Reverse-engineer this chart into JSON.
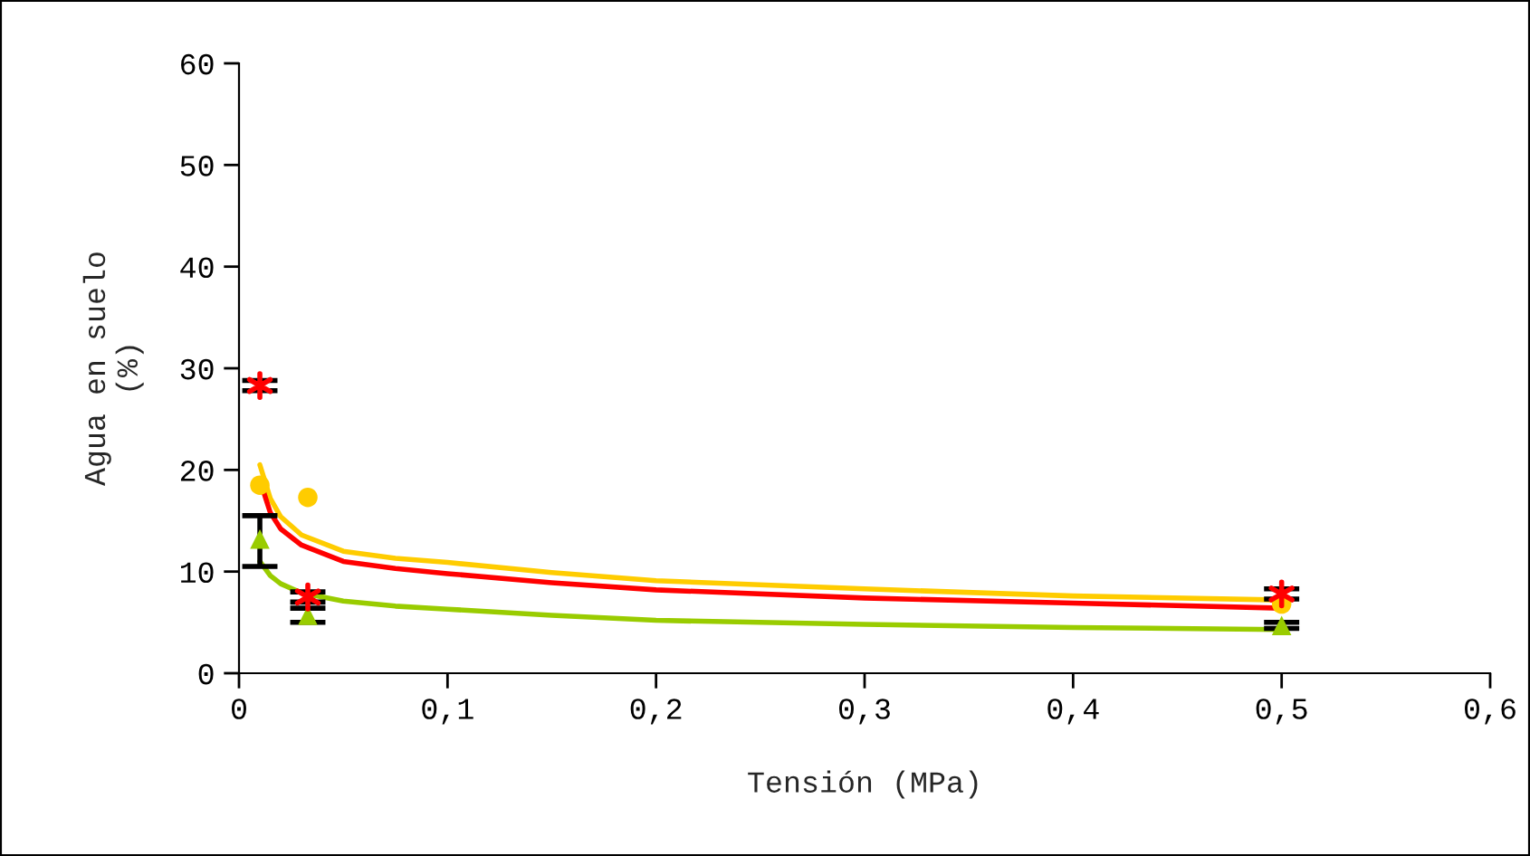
{
  "chart_data": {
    "type": "scatter",
    "xlabel": "Tensión (MPa)",
    "ylabel": "Agua en suelo\n(%)",
    "xlim": [
      0,
      0.6
    ],
    "xticks": [
      0,
      {
        "value": 0.1,
        "label": "0,1"
      },
      {
        "value": 0.2,
        "label": "0,2"
      },
      {
        "value": 0.3,
        "label": "0,3"
      },
      {
        "value": 0.4,
        "label": "0,4"
      },
      {
        "value": 0.5,
        "label": "0,5"
      },
      {
        "value": 0.6,
        "label": "0,6"
      }
    ],
    "ylim": [
      0,
      60
    ],
    "yticks": [
      0,
      10,
      20,
      30,
      40,
      50,
      60
    ],
    "grid": false,
    "legend": false,
    "series": [
      {
        "type": "line",
        "color": "#ffcc00",
        "marker": "none",
        "x": [
          0.01,
          0.015,
          0.02,
          0.03,
          0.05,
          0.075,
          0.1,
          0.15,
          0.2,
          0.3,
          0.4,
          0.5
        ],
        "values": [
          20.5,
          17.2,
          15.4,
          13.6,
          12.0,
          11.3,
          10.9,
          9.9,
          9.1,
          8.3,
          7.6,
          7.2
        ]
      },
      {
        "type": "line",
        "color": "#ff0000",
        "marker": "none",
        "x": [
          0.01,
          0.015,
          0.02,
          0.03,
          0.05,
          0.075,
          0.1,
          0.15,
          0.2,
          0.3,
          0.4,
          0.5
        ],
        "values": [
          19.0,
          15.8,
          14.2,
          12.6,
          11.0,
          10.3,
          9.8,
          8.9,
          8.2,
          7.4,
          6.9,
          6.4
        ]
      },
      {
        "type": "line",
        "color": "#99cc00",
        "marker": "none",
        "x": [
          0.01,
          0.015,
          0.02,
          0.03,
          0.05,
          0.075,
          0.1,
          0.15,
          0.2,
          0.3,
          0.4,
          0.5
        ],
        "values": [
          11.0,
          9.6,
          8.8,
          7.9,
          7.1,
          6.6,
          6.3,
          5.7,
          5.2,
          4.8,
          4.5,
          4.3
        ]
      },
      {
        "color": "#ffcc00",
        "marker": "circle",
        "x": [
          0.01,
          0.033,
          0.5
        ],
        "values": [
          18.5,
          17.3,
          6.8
        ]
      },
      {
        "color": "#99cc00",
        "marker": "triangle",
        "x": [
          0.01,
          0.033,
          0.5
        ],
        "values": [
          13.2,
          5.7,
          4.7
        ],
        "errors": [
          [
            10.5,
            15.5
          ],
          [
            5.0,
            6.4
          ],
          [
            4.4,
            5.0
          ]
        ]
      },
      {
        "color": "#ff0000",
        "marker": "cross",
        "x": [
          0.01,
          0.033,
          0.5
        ],
        "values": [
          28.3,
          7.5,
          7.8
        ],
        "errors": [
          0.5,
          0.5,
          0.5
        ]
      }
    ]
  }
}
